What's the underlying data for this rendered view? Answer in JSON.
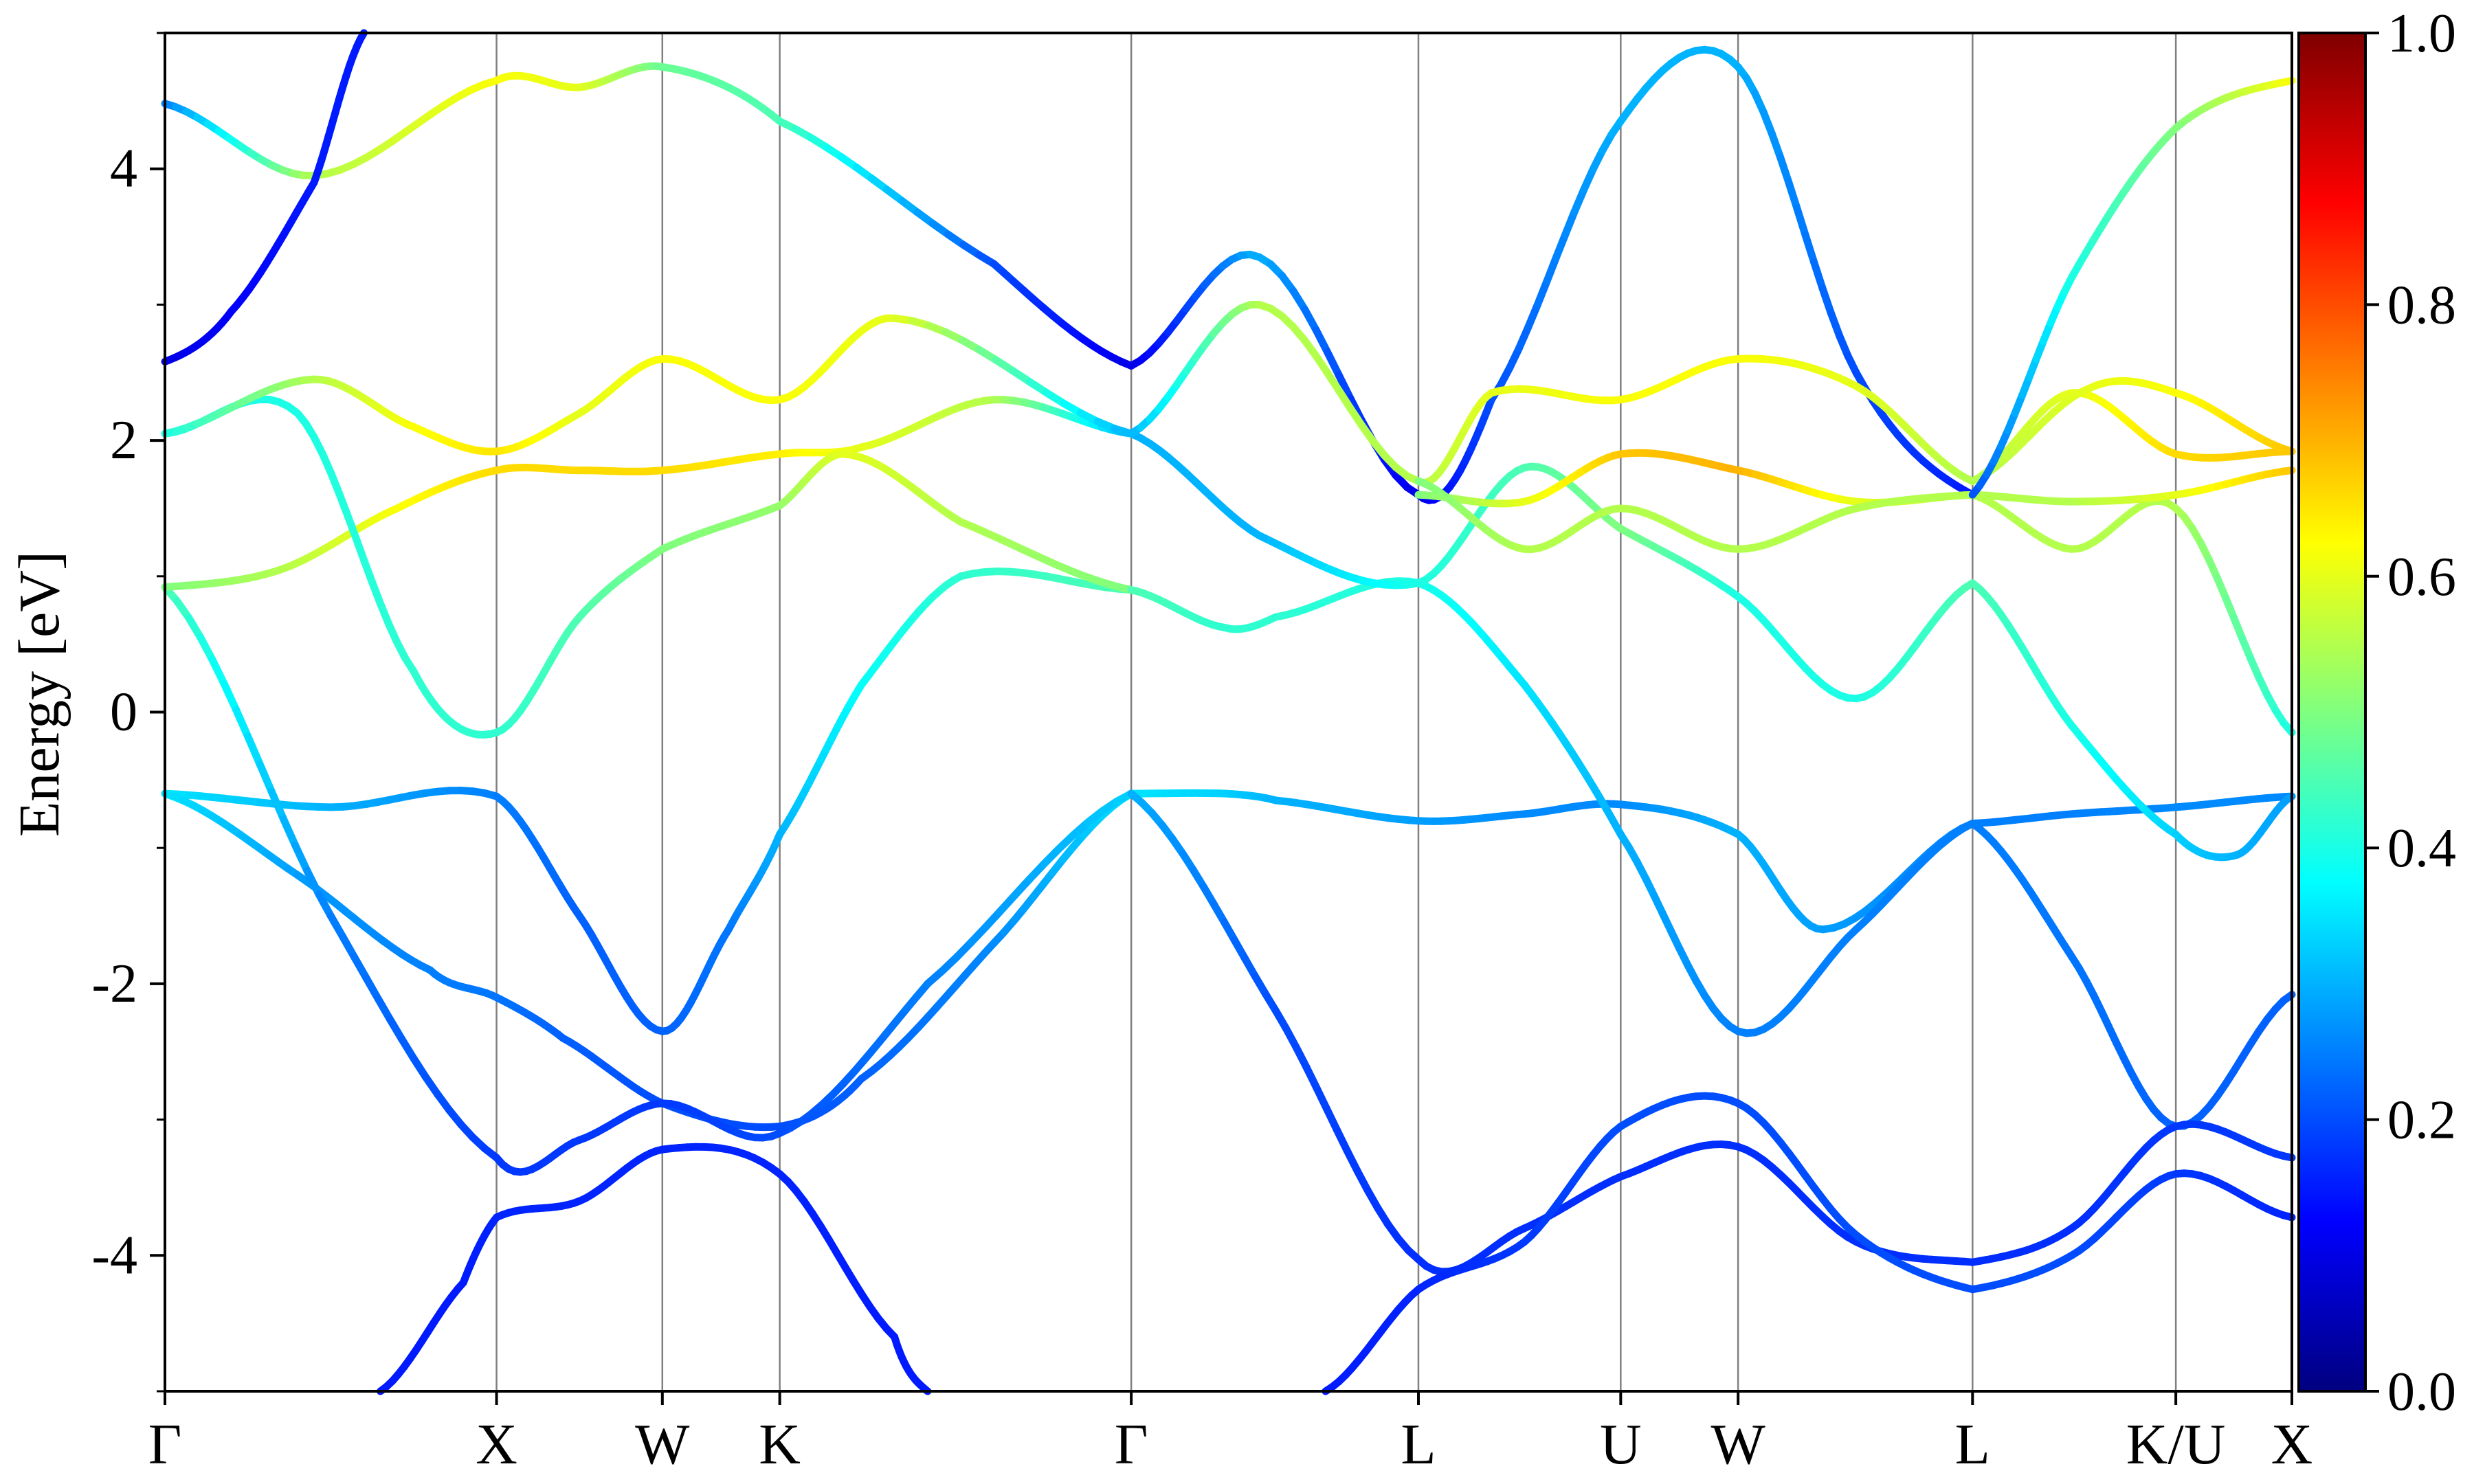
{
  "chart_data": {
    "type": "line",
    "title": "",
    "ylabel": "Energy [eV]",
    "xlabel": "",
    "ylim": [
      -5,
      5
    ],
    "yticks": [
      4,
      2,
      0,
      -2,
      -4
    ],
    "ytick_labels": [
      "4",
      "2",
      "0",
      "-2",
      "-4"
    ],
    "kpath_labels": [
      "Γ",
      "X",
      "W",
      "K",
      "Γ",
      "L",
      "U",
      "W",
      "L",
      "K/U",
      "X"
    ],
    "kpath_positions": [
      0.0,
      1.0,
      1.5,
      1.854,
      2.914,
      3.78,
      4.39,
      4.744,
      5.451,
      6.064,
      6.414
    ],
    "high_symmetry_lines": true,
    "colormap": "jet",
    "colorbar": {
      "range": [
        0.0,
        1.0
      ],
      "tick_labels": [
        "0.0",
        "0.2",
        "0.4",
        "0.6",
        "0.8",
        "1.0"
      ],
      "colors": [
        "#00007f",
        "#0000ff",
        "#007fff",
        "#00ffff",
        "#7fff7f",
        "#ffff00",
        "#ff7f00",
        "#ff0000",
        "#7f0000"
      ]
    },
    "series": [
      {
        "x": [
          0,
          0.5,
          1.0,
          1.25,
          1.5,
          1.7,
          1.854,
          2.1,
          2.4,
          2.914
        ],
        "y": [
          -0.6,
          -0.7,
          -0.62,
          -1.5,
          -2.35,
          -1.6,
          -0.9,
          0.2,
          1.0,
          0.9
        ],
        "c": [
          0.35,
          0.3,
          0.25,
          0.22,
          0.22,
          0.24,
          0.3,
          0.38,
          0.42,
          0.45
        ]
      },
      {
        "x": [
          0,
          0.4,
          0.8,
          1.0,
          1.2,
          1.5,
          1.854,
          2.1,
          2.5,
          2.914
        ],
        "y": [
          -0.6,
          -1.2,
          -1.9,
          -2.1,
          -2.4,
          -2.88,
          -3.05,
          -2.7,
          -1.7,
          -0.6
        ],
        "c": [
          0.35,
          0.28,
          0.25,
          0.24,
          0.22,
          0.2,
          0.2,
          0.22,
          0.26,
          0.35
        ]
      },
      {
        "x": [
          0,
          0.5,
          1.0,
          1.25,
          1.5,
          1.854,
          2.3,
          2.914
        ],
        "y": [
          0.92,
          -1.5,
          -3.28,
          -3.15,
          -2.88,
          -3.1,
          -2.0,
          -0.6
        ],
        "c": [
          0.45,
          0.25,
          0.18,
          0.18,
          0.18,
          0.2,
          0.25,
          0.33
        ]
      },
      {
        "x": [
          0.65,
          0.9,
          1.0,
          1.25,
          1.5,
          1.854,
          2.2,
          2.3
        ],
        "y": [
          -5.0,
          -4.2,
          -3.72,
          -3.6,
          -3.22,
          -3.4,
          -4.6,
          -5.0
        ],
        "c": [
          0.15,
          0.15,
          0.16,
          0.16,
          0.16,
          0.16,
          0.15,
          0.15
        ]
      },
      {
        "x": [
          0,
          0.35,
          0.7,
          1.0,
          1.25,
          1.5,
          1.854,
          2.1,
          2.5,
          2.914
        ],
        "y": [
          0.92,
          1.05,
          1.5,
          1.78,
          1.78,
          1.78,
          1.9,
          1.95,
          2.3,
          2.05
        ],
        "c": [
          0.5,
          0.55,
          0.62,
          0.66,
          0.66,
          0.66,
          0.64,
          0.6,
          0.55,
          0.3
        ]
      },
      {
        "x": [
          0,
          0.4,
          0.75,
          1.0,
          1.25,
          1.5,
          1.854,
          2.05,
          2.4,
          2.914
        ],
        "y": [
          2.05,
          2.2,
          0.3,
          -0.15,
          0.7,
          1.2,
          1.52,
          1.9,
          1.4,
          0.9
        ],
        "c": [
          0.4,
          0.4,
          0.42,
          0.42,
          0.45,
          0.5,
          0.52,
          0.6,
          0.55,
          0.5
        ]
      },
      {
        "x": [
          0,
          0.45,
          0.75,
          1.0,
          1.25,
          1.5,
          1.854,
          2.2,
          2.914
        ],
        "y": [
          2.05,
          2.45,
          2.1,
          1.92,
          2.2,
          2.6,
          2.3,
          2.9,
          2.05
        ],
        "c": [
          0.4,
          0.55,
          0.62,
          0.65,
          0.6,
          0.62,
          0.62,
          0.6,
          0.3
        ]
      },
      {
        "x": [
          0,
          0.45,
          1.0,
          1.25,
          1.5,
          1.854,
          2.5,
          2.914
        ],
        "y": [
          4.48,
          3.95,
          4.65,
          4.6,
          4.75,
          4.35,
          3.3,
          2.55
        ],
        "c": [
          0.25,
          0.55,
          0.62,
          0.6,
          0.48,
          0.45,
          0.2,
          0.1
        ]
      },
      {
        "x": [
          0,
          0.2,
          0.45,
          0.6
        ],
        "y": [
          2.58,
          2.95,
          3.9,
          5.0
        ],
        "c": [
          0.1,
          0.12,
          0.15,
          0.15
        ]
      },
      {
        "x": [
          2.914,
          3.2,
          3.35,
          3.78,
          4.1,
          4.39,
          4.744,
          5.0,
          5.451
        ],
        "y": [
          -0.6,
          -0.6,
          -0.65,
          -0.8,
          -0.75,
          -0.68,
          -0.9,
          -1.6,
          -0.82
        ],
        "c": [
          0.35,
          0.33,
          0.3,
          0.28,
          0.26,
          0.26,
          0.3,
          0.28,
          0.25
        ]
      },
      {
        "x": [
          2.914,
          3.35,
          3.78,
          4.1,
          4.39,
          4.744,
          5.1,
          5.451
        ],
        "y": [
          -0.6,
          -2.2,
          -4.03,
          -3.8,
          -3.42,
          -3.2,
          -3.9,
          -4.05
        ],
        "c": [
          0.3,
          0.2,
          0.17,
          0.17,
          0.17,
          0.17,
          0.17,
          0.17
        ]
      },
      {
        "x": [
          3.5,
          3.78,
          4.1,
          4.39,
          4.744,
          5.1,
          5.451
        ],
        "y": [
          -5.0,
          -4.25,
          -3.9,
          -3.05,
          -2.88,
          -3.85,
          -4.25
        ],
        "c": [
          0.15,
          0.16,
          0.18,
          0.2,
          0.2,
          0.2,
          0.2
        ]
      },
      {
        "x": [
          2.914,
          3.2,
          3.35,
          3.78,
          4.1,
          4.39,
          4.744,
          5.1,
          5.451
        ],
        "y": [
          0.9,
          0.62,
          0.7,
          0.95,
          0.2,
          -0.9,
          -2.35,
          -1.6,
          -0.82
        ],
        "c": [
          0.45,
          0.42,
          0.42,
          0.4,
          0.35,
          0.3,
          0.25,
          0.25,
          0.25
        ]
      },
      {
        "x": [
          2.914,
          3.3,
          3.78,
          4.1,
          4.39,
          4.744,
          5.1,
          5.451
        ],
        "y": [
          2.05,
          1.3,
          0.95,
          1.8,
          1.35,
          0.85,
          0.1,
          0.95
        ],
        "c": [
          0.3,
          0.3,
          0.4,
          0.45,
          0.5,
          0.4,
          0.4,
          0.45
        ]
      },
      {
        "x": [
          2.914,
          3.3,
          3.78,
          4.0,
          4.39,
          4.744,
          5.1,
          5.451
        ],
        "y": [
          2.55,
          3.35,
          1.6,
          2.3,
          4.35,
          4.75,
          2.5,
          1.6
        ],
        "c": [
          0.1,
          0.3,
          0.1,
          0.2,
          0.3,
          0.3,
          0.2,
          0.15
        ]
      },
      {
        "x": [
          2.914,
          3.3,
          3.78,
          4.0,
          4.39,
          4.744,
          5.1,
          5.451
        ],
        "y": [
          2.05,
          3.0,
          1.7,
          2.35,
          2.3,
          2.6,
          2.4,
          1.7
        ],
        "c": [
          0.3,
          0.55,
          0.55,
          0.6,
          0.62,
          0.62,
          0.6,
          0.55
        ]
      },
      {
        "x": [
          3.78,
          4.1,
          4.39,
          4.744,
          5.1,
          5.451
        ],
        "y": [
          1.6,
          1.55,
          1.9,
          1.78,
          1.55,
          1.6
        ],
        "c": [
          0.5,
          0.6,
          0.68,
          0.7,
          0.6,
          0.55
        ]
      },
      {
        "x": [
          3.78,
          4.1,
          4.39,
          4.744,
          5.1,
          5.451
        ],
        "y": [
          1.7,
          1.2,
          1.5,
          1.2,
          1.5,
          1.6
        ],
        "c": [
          0.5,
          0.55,
          0.55,
          0.55,
          0.55,
          0.55
        ]
      },
      {
        "x": [
          5.451,
          5.75,
          6.064,
          6.414
        ],
        "y": [
          -0.82,
          -0.75,
          -0.7,
          -0.62
        ],
        "c": [
          0.25,
          0.25,
          0.26,
          0.26
        ]
      },
      {
        "x": [
          5.451,
          5.75,
          6.064,
          6.414
        ],
        "y": [
          -0.82,
          -1.8,
          -3.05,
          -2.08
        ],
        "c": [
          0.25,
          0.24,
          0.22,
          0.22
        ]
      },
      {
        "x": [
          5.451,
          5.75,
          6.064,
          6.414
        ],
        "y": [
          -4.05,
          -3.8,
          -3.05,
          -3.28
        ],
        "c": [
          0.17,
          0.17,
          0.18,
          0.18
        ]
      },
      {
        "x": [
          5.451,
          5.75,
          6.064,
          6.414
        ],
        "y": [
          -4.25,
          -4.0,
          -3.4,
          -3.72
        ],
        "c": [
          0.2,
          0.2,
          0.18,
          0.16
        ]
      },
      {
        "x": [
          5.451,
          5.75,
          6.064,
          6.25,
          6.414
        ],
        "y": [
          0.95,
          -0.1,
          -0.9,
          -1.05,
          -0.62
        ],
        "c": [
          0.45,
          0.4,
          0.33,
          0.3,
          0.28
        ]
      },
      {
        "x": [
          5.451,
          5.75,
          6.064,
          6.414
        ],
        "y": [
          1.6,
          1.2,
          1.5,
          -0.15
        ],
        "c": [
          0.55,
          0.55,
          0.55,
          0.4
        ]
      },
      {
        "x": [
          5.451,
          5.75,
          6.064,
          6.414
        ],
        "y": [
          1.6,
          1.55,
          1.6,
          1.78
        ],
        "c": [
          0.55,
          0.55,
          0.6,
          0.68
        ]
      },
      {
        "x": [
          5.451,
          5.75,
          6.064,
          6.414
        ],
        "y": [
          1.7,
          2.35,
          1.9,
          1.92
        ],
        "c": [
          0.55,
          0.6,
          0.66,
          0.68
        ]
      },
      {
        "x": [
          5.451,
          5.8,
          6.064,
          6.414
        ],
        "y": [
          1.7,
          2.38,
          2.35,
          1.92
        ],
        "c": [
          0.55,
          0.6,
          0.62,
          0.68
        ]
      },
      {
        "x": [
          5.451,
          5.75,
          6.064,
          6.414
        ],
        "y": [
          1.6,
          3.2,
          4.3,
          4.65
        ],
        "c": [
          0.2,
          0.4,
          0.5,
          0.62
        ]
      }
    ]
  }
}
